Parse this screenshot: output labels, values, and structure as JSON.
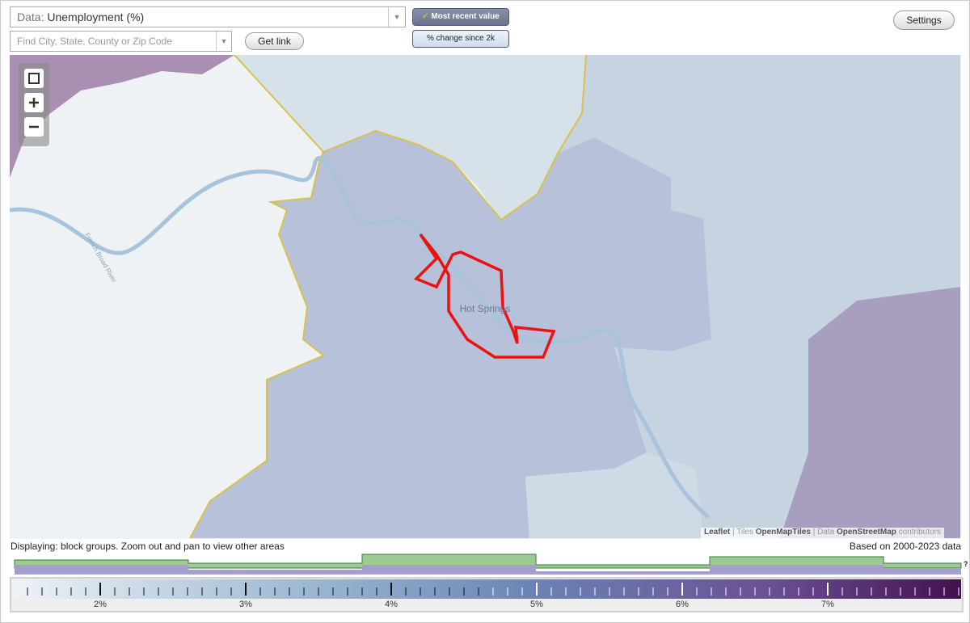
{
  "controls": {
    "data_label": "Data:",
    "data_value": "Unemployment (%)",
    "search_placeholder": "Find City, State, County or Zip Code",
    "get_link": "Get link",
    "most_recent": "Most recent value",
    "pct_change": "% change since 2k",
    "settings": "Settings"
  },
  "map": {
    "place_label": "Hot Springs",
    "river_label": "French Broad River",
    "attribution": {
      "leaflet": "Leaflet",
      "tiles": "| Tiles",
      "tiles_source": "OpenMapTiles",
      "data": "| Data",
      "data_source": "OpenStreetMap",
      "contributors": "contributors"
    }
  },
  "status": {
    "displaying": "Displaying: block groups. Zoom out and pan to view other areas",
    "based_on": "Based on 2000-2023 data"
  },
  "scale": {
    "labels": [
      "2%",
      "3%",
      "4%",
      "5%",
      "6%",
      "7%"
    ],
    "help": "?"
  }
}
